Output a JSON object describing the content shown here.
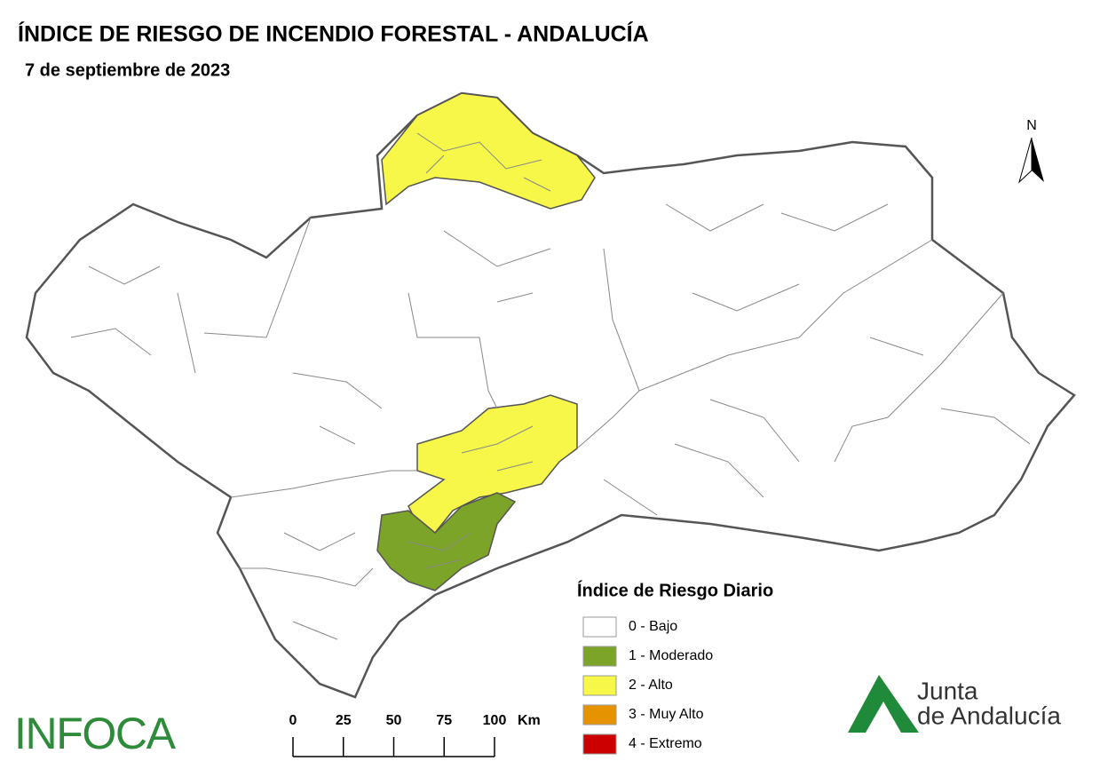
{
  "header": {
    "title": "ÍNDICE DE RIESGO DE INCENDIO FORESTAL - ANDALUCÍA",
    "date": "7 de septiembre de 2023"
  },
  "north": "N",
  "legend": {
    "title": "Índice de Riesgo Diario",
    "items": [
      {
        "label": "0 - Bajo",
        "color": "#ffffff"
      },
      {
        "label": "1 - Moderado",
        "color": "#7ba428"
      },
      {
        "label": "2 - Alto",
        "color": "#f7f74a"
      },
      {
        "label": "3 - Muy Alto",
        "color": "#e59400"
      },
      {
        "label": "4 - Extremo",
        "color": "#cc0000"
      }
    ]
  },
  "scale": {
    "ticks": [
      0,
      25,
      50,
      75,
      100
    ],
    "unit": "Km"
  },
  "logos": {
    "left": "INFOCA",
    "right_line1": "Junta",
    "right_line2": "de Andalucía"
  }
}
